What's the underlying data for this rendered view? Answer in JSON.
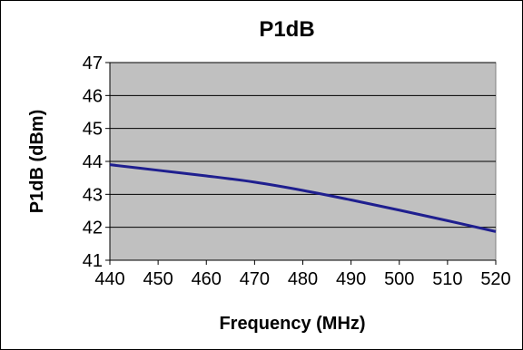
{
  "chart_data": {
    "type": "line",
    "title": "P1dB",
    "xlabel": "Frequency (MHz)",
    "ylabel": "P1dB (dBm)",
    "xlim": [
      440,
      520
    ],
    "ylim": [
      41,
      47
    ],
    "x_ticks": [
      440,
      450,
      460,
      470,
      480,
      490,
      500,
      510,
      520
    ],
    "y_ticks": [
      41,
      42,
      43,
      44,
      45,
      46,
      47
    ],
    "grid": "horizontal",
    "plot_background": "#c0c0c0",
    "series": [
      {
        "color": "#1f1f8f",
        "x": [
          440,
          450,
          460,
          470,
          480,
          490,
          500,
          510,
          520
        ],
        "y": [
          43.9,
          43.73,
          43.56,
          43.37,
          43.12,
          42.83,
          42.52,
          42.2,
          41.87
        ]
      }
    ]
  }
}
